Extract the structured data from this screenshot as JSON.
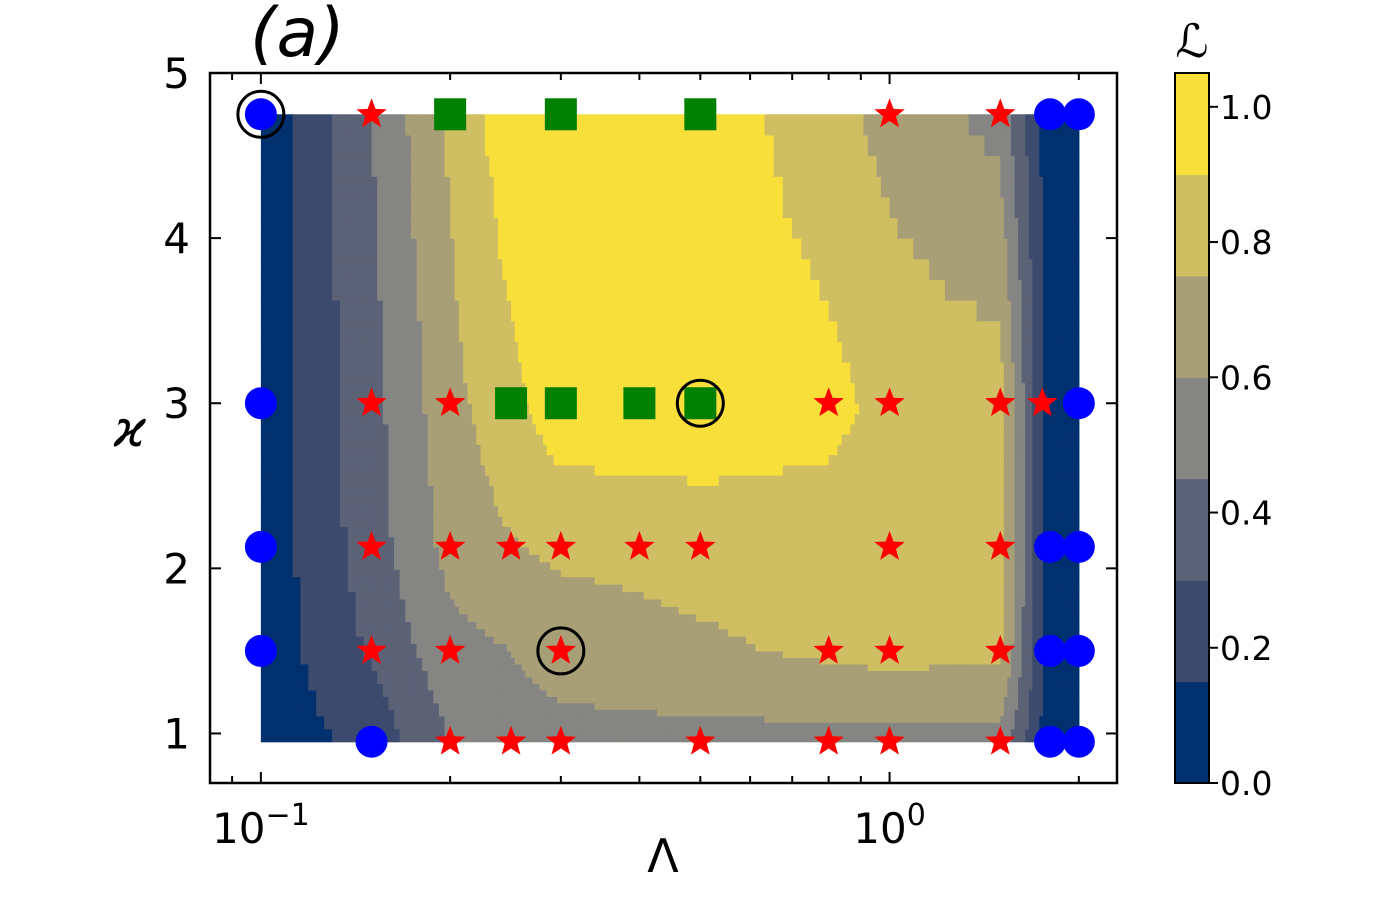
{
  "panel_label": "(a)",
  "chart_data": {
    "type": "contour",
    "xlabel": "Λ",
    "ylabel": "ϰ",
    "xscale": "log",
    "xlim": [
      0.083,
      2.3
    ],
    "ylim": [
      0.7,
      5.0
    ],
    "x_tick_labels": [
      {
        "value": 0.1,
        "base": "10",
        "exp": "−1"
      },
      {
        "value": 1,
        "base": "10",
        "exp": "0"
      }
    ],
    "y_ticks": [
      1,
      2,
      3,
      4,
      5
    ],
    "colorbar": {
      "label": "ℒ",
      "range": [
        0.0,
        1.05
      ],
      "ticks": [
        "0.0",
        "0.2",
        "0.4",
        "0.6",
        "0.8",
        "1.0"
      ],
      "levels": [
        0.0,
        0.15,
        0.3,
        0.45,
        0.6,
        0.75,
        0.9,
        1.05
      ],
      "colors": [
        "#00306e",
        "#3c4b6d",
        "#5c6275",
        "#858583",
        "#a89f77",
        "#d0bf62",
        "#f9df3a"
      ]
    },
    "grid_x": [
      0.1,
      0.15,
      0.2,
      0.25,
      0.3,
      0.4,
      0.5,
      0.8,
      1.0,
      1.5,
      1.8,
      2.0
    ],
    "grid_y": [
      0.95,
      1.5,
      2.13,
      3.0,
      4.75
    ],
    "L": [
      [
        0.05,
        0.2,
        0.45,
        0.55,
        0.55,
        0.55,
        0.55,
        0.55,
        0.55,
        0.55,
        0.05,
        0.05
      ],
      [
        0.05,
        0.32,
        0.55,
        0.6,
        0.66,
        0.7,
        0.72,
        0.78,
        0.8,
        0.78,
        0.05,
        0.05
      ],
      [
        0.05,
        0.38,
        0.65,
        0.74,
        0.78,
        0.79,
        0.82,
        0.82,
        0.82,
        0.82,
        0.05,
        0.05
      ],
      [
        0.05,
        0.4,
        0.7,
        0.86,
        1.0,
        1.0,
        1.0,
        0.95,
        0.85,
        0.82,
        0.05,
        0.05
      ],
      [
        0.05,
        0.45,
        0.78,
        1.0,
        1.0,
        1.0,
        1.0,
        0.8,
        0.7,
        0.55,
        0.05,
        0.05
      ]
    ],
    "series": [
      {
        "marker": "circle",
        "color": "#0000ff",
        "points": [
          [
            0.1,
            4.75
          ],
          [
            1.8,
            4.75
          ],
          [
            2.0,
            4.75
          ],
          [
            0.1,
            3.0
          ],
          [
            2.0,
            3.0
          ],
          [
            0.1,
            2.13
          ],
          [
            1.8,
            2.13
          ],
          [
            2.0,
            2.13
          ],
          [
            0.1,
            1.5
          ],
          [
            1.8,
            1.5
          ],
          [
            2.0,
            1.5
          ],
          [
            0.15,
            0.95
          ],
          [
            1.8,
            0.95
          ],
          [
            2.0,
            0.95
          ]
        ]
      },
      {
        "marker": "star",
        "color": "#ff0000",
        "points": [
          [
            0.15,
            4.75
          ],
          [
            1.0,
            4.75
          ],
          [
            1.5,
            4.75
          ],
          [
            0.15,
            3.0
          ],
          [
            0.2,
            3.0
          ],
          [
            0.8,
            3.0
          ],
          [
            1.0,
            3.0
          ],
          [
            1.5,
            3.0
          ],
          [
            1.75,
            3.0
          ],
          [
            0.15,
            2.13
          ],
          [
            0.2,
            2.13
          ],
          [
            0.25,
            2.13
          ],
          [
            0.3,
            2.13
          ],
          [
            0.4,
            2.13
          ],
          [
            0.5,
            2.13
          ],
          [
            1.0,
            2.13
          ],
          [
            1.5,
            2.13
          ],
          [
            0.15,
            1.5
          ],
          [
            0.2,
            1.5
          ],
          [
            0.3,
            1.5
          ],
          [
            0.8,
            1.5
          ],
          [
            1.0,
            1.5
          ],
          [
            1.5,
            1.5
          ],
          [
            0.2,
            0.95
          ],
          [
            0.25,
            0.95
          ],
          [
            0.3,
            0.95
          ],
          [
            0.5,
            0.95
          ],
          [
            0.8,
            0.95
          ],
          [
            1.0,
            0.95
          ],
          [
            1.5,
            0.95
          ]
        ]
      },
      {
        "marker": "square",
        "color": "#008000",
        "points": [
          [
            0.2,
            4.75
          ],
          [
            0.3,
            4.75
          ],
          [
            0.5,
            4.75
          ],
          [
            0.25,
            3.0
          ],
          [
            0.3,
            3.0
          ],
          [
            0.4,
            3.0
          ],
          [
            0.5,
            3.0
          ]
        ]
      }
    ],
    "highlighted": [
      [
        0.1,
        4.75
      ],
      [
        0.5,
        3.0
      ],
      [
        0.3,
        1.5
      ]
    ]
  }
}
